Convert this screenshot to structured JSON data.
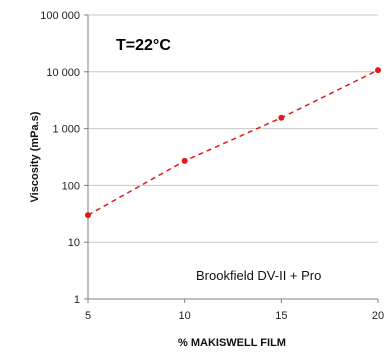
{
  "chart_data": {
    "type": "scatter",
    "title": "",
    "xlabel": "% MAKISWELL FILM",
    "ylabel": "Viscosity (mPa.s)",
    "xlim": [
      5,
      20
    ],
    "ylim": [
      1,
      100000
    ],
    "yscale": "log",
    "grid": "horizontal",
    "x_ticks": [
      "5",
      "10",
      "15",
      "20"
    ],
    "y_ticks": [
      "1",
      "10",
      "100",
      "1 000",
      "10 000",
      "100 000"
    ],
    "annotations": [
      "T=22°C",
      "Brookfield DV-II + Pro"
    ],
    "series": [
      {
        "x": [
          5,
          10,
          15,
          20
        ],
        "y": [
          30,
          270,
          1550,
          10700
        ],
        "color": "#e31a1c",
        "trendline": "dashed"
      }
    ]
  }
}
